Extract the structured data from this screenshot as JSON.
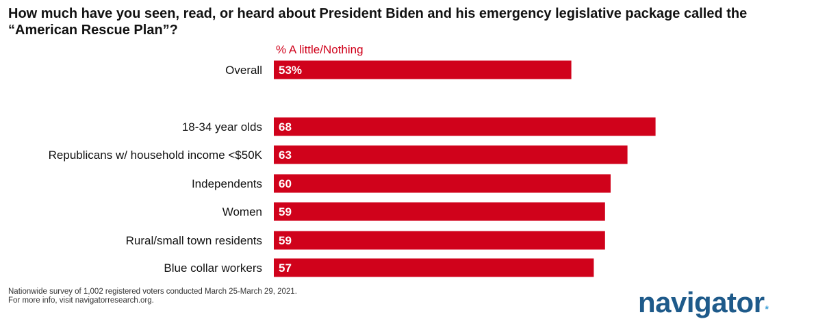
{
  "title": "How much have you seen, read, or heard about President Biden and his emergency legislative package called the “American Rescue Plan”?",
  "chart_data": {
    "type": "bar",
    "orientation": "horizontal",
    "series_label": "% A little/Nothing",
    "categories": [
      "Overall",
      "18-34 year olds",
      "Republicans w/ household income <$50K",
      "Independents",
      "Women",
      "Rural/small town residents",
      "Blue collar workers"
    ],
    "values": [
      53,
      68,
      63,
      60,
      59,
      59,
      57
    ],
    "value_labels": [
      "53%",
      "68",
      "63",
      "60",
      "59",
      "59",
      "57"
    ],
    "bar_color": "#d0021b",
    "grid": false,
    "legend": "none"
  },
  "footnote": {
    "line1": "Nationwide survey of 1,002 registered voters conducted March 25-March 29, 2021.",
    "line2": "For more info, visit navigatorresearch.org."
  },
  "logo": {
    "text": "navigator",
    "mark": "*"
  }
}
